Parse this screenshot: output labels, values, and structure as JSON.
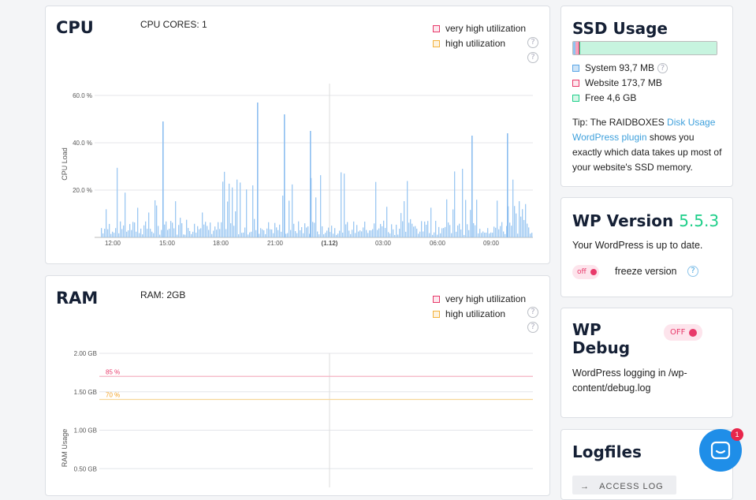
{
  "cpu": {
    "title": "CPU",
    "cores": "CPU CORES: 1",
    "legend_very_high": "very high utilization",
    "legend_high": "high utilization",
    "ylabel": "CPU Load",
    "yticks": [
      "60.0 %",
      "40.0 %",
      "20.0 %"
    ],
    "xticks": [
      "12:00",
      "15:00",
      "18:00",
      "21:00",
      "(1.12)",
      "03:00",
      "06:00",
      "09:00"
    ]
  },
  "ram": {
    "title": "RAM",
    "size": "RAM: 2GB",
    "legend_very_high": "very high utilization",
    "legend_high": "high utilization",
    "ylabel": "RAM Usage",
    "yticks": [
      "2.00 GB",
      "1.50 GB",
      "1.00 GB",
      "0.50 GB"
    ],
    "threshold_85": "85 %",
    "threshold_70": "70 %"
  },
  "ssd": {
    "title": "SSD Usage",
    "system": "System 93,7 MB",
    "website": "Website 173,7 MB",
    "free": "Free 4,6 GB",
    "tip_prefix": "Tip: The RAIDBOXES ",
    "tip_link": "Disk Usage WordPress plugin",
    "tip_suffix": " shows you exactly which data takes up most of your website's SSD memory."
  },
  "wp_version": {
    "title": "WP Version",
    "version": "5.5.3",
    "status": "Your WordPress is up to date.",
    "toggle": "off",
    "freeze_label": "freeze version"
  },
  "wp_debug": {
    "title": "WP Debug",
    "toggle": "OFF",
    "desc": "WordPress logging in /wp-content/debug.log"
  },
  "logfiles": {
    "title": "Logfiles",
    "access_log": "ACCESS LOG"
  },
  "chat": {
    "badge": "1"
  },
  "colors": {
    "accent": "#3ea0dc",
    "green": "#1fcf8a",
    "pink": "#e8396a",
    "orange": "#f3b23c"
  },
  "chart_data": [
    {
      "type": "bar",
      "title": "",
      "ylabel": "CPU Load",
      "ylim": [
        0,
        65
      ],
      "x_range": [
        "12:00",
        "10:30"
      ],
      "peaks": [
        {
          "x": "15:40",
          "y": 49
        },
        {
          "x": "20:10",
          "y": 57
        },
        {
          "x": "21:40",
          "y": 52
        },
        {
          "x": "22:40",
          "y": 45
        },
        {
          "x": "05:30",
          "y": 43
        },
        {
          "x": "07:20",
          "y": 44
        }
      ]
    },
    {
      "type": "line",
      "title": "",
      "ylabel": "RAM Usage",
      "ylim": [
        0,
        2
      ],
      "thresholds": [
        {
          "label": "85 %",
          "value": 1.7
        },
        {
          "label": "70 %",
          "value": 1.4
        }
      ]
    }
  ]
}
